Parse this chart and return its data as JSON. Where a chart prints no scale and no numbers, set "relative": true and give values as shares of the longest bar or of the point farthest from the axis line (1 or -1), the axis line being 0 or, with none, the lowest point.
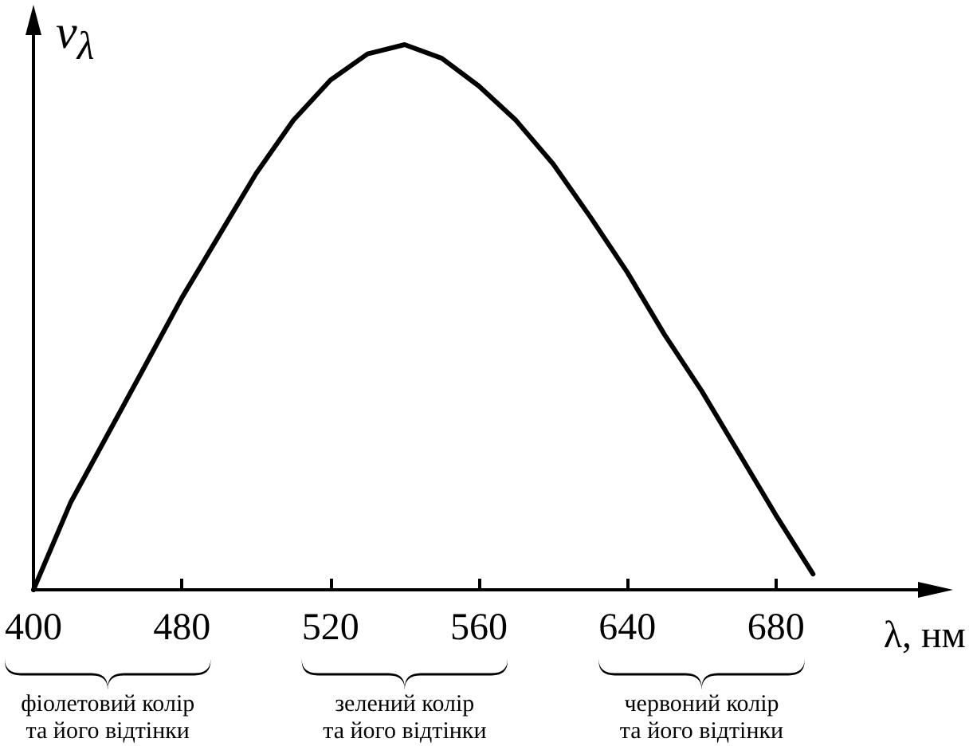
{
  "chart_data": {
    "type": "line",
    "relative": true,
    "ylabel": "v$_{λ}$",
    "xlabel": "λ, нм",
    "marker": "none",
    "categories": [
      "400",
      null,
      null,
      null,
      "480",
      null,
      null,
      null,
      "520",
      null,
      null,
      null,
      "560",
      null,
      null,
      null,
      "640",
      null,
      null,
      null,
      "680",
      null,
      null,
      null,
      null
    ],
    "series": [
      {
        "color": "#000000",
        "values": [
          0,
          0.16,
          0.285,
          0.41,
          0.536,
          0.65,
          0.764,
          0.861,
          0.935,
          0.983,
          1,
          0.975,
          0.924,
          0.861,
          0.781,
          0.684,
          0.582,
          0.468,
          0.365,
          0.251,
          0.137,
          0.029,
          null,
          null,
          null
        ]
      }
    ],
    "annotations": [
      "фіолетовий колір\nта його відтінки",
      "зелений колір\nта його відтінки",
      "червоний колір\nта його відтінки"
    ]
  }
}
